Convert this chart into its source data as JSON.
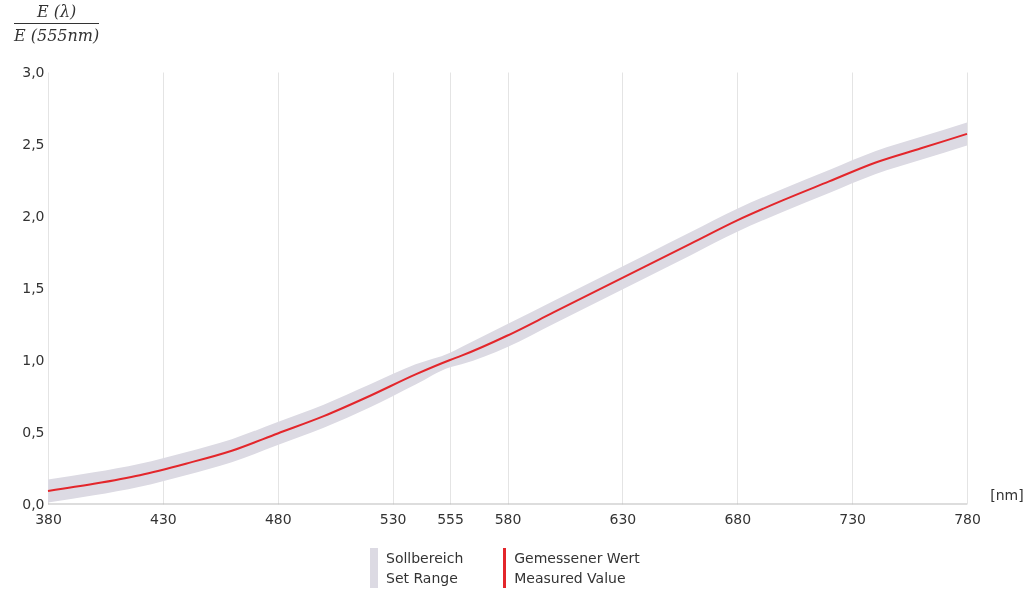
{
  "chart_data": {
    "type": "line",
    "ylabel": "E (λ)\nE (555nm)",
    "xlabel": "[nm]",
    "x": [
      380,
      400,
      420,
      440,
      460,
      480,
      500,
      520,
      540,
      555,
      560,
      580,
      600,
      620,
      640,
      660,
      680,
      700,
      720,
      740,
      760,
      780
    ],
    "series": [
      {
        "name": "Gemessener Wert\nMeasured Value",
        "color": "#e3262b",
        "values": [
          0.09,
          0.14,
          0.2,
          0.28,
          0.37,
          0.49,
          0.61,
          0.75,
          0.9,
          1.0,
          1.03,
          1.17,
          1.33,
          1.49,
          1.65,
          1.81,
          1.97,
          2.11,
          2.24,
          2.37,
          2.47,
          2.57
        ],
        "lower": [
          0.01,
          0.06,
          0.12,
          0.2,
          0.29,
          0.41,
          0.53,
          0.67,
          0.83,
          0.95,
          0.97,
          1.09,
          1.25,
          1.41,
          1.57,
          1.73,
          1.89,
          2.03,
          2.16,
          2.29,
          2.39,
          2.49
        ],
        "upper": [
          0.17,
          0.22,
          0.28,
          0.36,
          0.45,
          0.57,
          0.69,
          0.83,
          0.97,
          1.05,
          1.09,
          1.25,
          1.41,
          1.57,
          1.73,
          1.89,
          2.05,
          2.19,
          2.32,
          2.45,
          2.55,
          2.65
        ]
      }
    ],
    "annotations": [
      "Sollbereich\nSet Range"
    ],
    "xlim": [
      380,
      780
    ],
    "xticks": [
      380,
      430,
      480,
      530,
      555,
      580,
      630,
      680,
      730,
      780
    ],
    "ylim": [
      0,
      3
    ],
    "yticks": [
      {
        "value": 0,
        "label": "0,0"
      },
      {
        "value": 0.5,
        "label": "0,5"
      },
      {
        "value": 1,
        "label": "1,0"
      },
      {
        "value": 1.5,
        "label": "1,5"
      },
      {
        "value": 2,
        "label": "2,0"
      },
      {
        "value": 2.5,
        "label": "2,5"
      },
      {
        "value": 3,
        "label": "3,0"
      }
    ],
    "grid": "x",
    "legend": "bottom"
  }
}
